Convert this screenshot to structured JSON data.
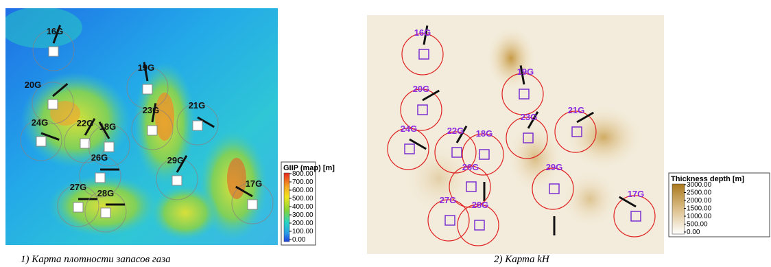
{
  "maps": [
    {
      "wells": [
        "16G",
        "19G",
        "20G",
        "23G",
        "21G",
        "24G",
        "22G",
        "18G",
        "26G",
        "29G",
        "27G",
        "28G",
        "17G"
      ],
      "legend": {
        "title": "GIIP (map) [m]",
        "ticks": [
          "800.00",
          "700.00",
          "600.00",
          "500.00",
          "400.00",
          "300.00",
          "200.00",
          "100.00",
          "0.00"
        ]
      }
    },
    {
      "wells": [
        "16G",
        "19G",
        "20G",
        "23G",
        "21G",
        "24G",
        "22G",
        "18G",
        "26G",
        "29G",
        "27G",
        "28G",
        "17G"
      ],
      "legend": {
        "title": "Thickness depth [m]",
        "ticks": [
          "3000.00",
          "2500.00",
          "2000.00",
          "1500.00",
          "1000.00",
          "500.00",
          "0.00"
        ]
      }
    }
  ],
  "captions": [
    "1)   Карта плотности запасов газа",
    "2) Карта kH"
  ]
}
